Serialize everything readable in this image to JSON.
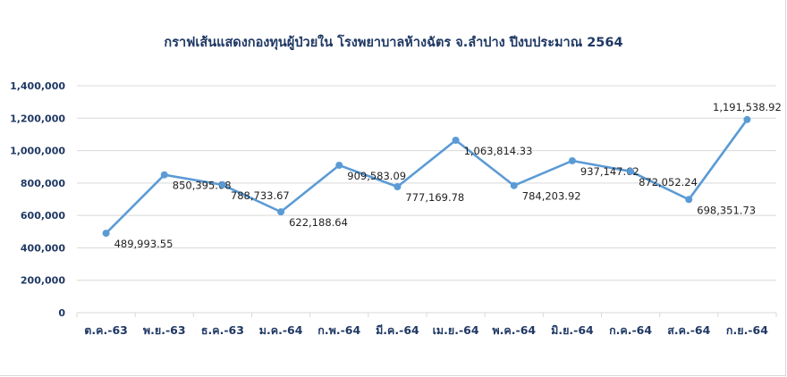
{
  "chart_data": {
    "type": "line",
    "title": "กราฟเส้นแสดงกองทุนผู้ป่วยใน โรงพยาบาลห้างฉัตร จ.ลำปาง ปีงบประมาณ 2564",
    "xlabel": "",
    "ylabel": "",
    "categories": [
      "ต.ค.-63",
      "พ.ย.-63",
      "ธ.ค.-63",
      "ม.ค.-64",
      "ก.พ.-64",
      "มี.ค.-64",
      "เม.ย.-64",
      "พ.ค.-64",
      "มิ.ย.-64",
      "ก.ค.-64",
      "ส.ค.-64",
      "ก.ย.-64"
    ],
    "series": [
      {
        "values": [
          489993.55,
          850395.08,
          788733.67,
          622188.64,
          909583.09,
          777169.78,
          1063814.33,
          784203.92,
          937147.62,
          872052.24,
          698351.73,
          1191538.92
        ],
        "labels": [
          "489,993.55",
          "850,395.08",
          "788,733.67",
          "622,188.64",
          "909,583.09",
          "777,169.78",
          "1,063,814.33",
          "784,203.92",
          "937,147.62",
          "872,052.24",
          "698,351.73",
          "1,191,538.92"
        ],
        "color": "#5b9bd5"
      }
    ],
    "ylim": [
      0,
      1400000
    ],
    "y_ticks": [
      0,
      200000,
      400000,
      600000,
      800000,
      1000000,
      1200000,
      1400000
    ],
    "y_tick_labels": [
      "0",
      "200,000",
      "400,000",
      "600,000",
      "800,000",
      "1,000,000",
      "1,200,000",
      "1,400,000"
    ],
    "grid": true,
    "legend": "none",
    "colors": {
      "line": "#5b9bd5",
      "grid": "#d9d9d9",
      "axis_text": "#1f3864"
    }
  }
}
